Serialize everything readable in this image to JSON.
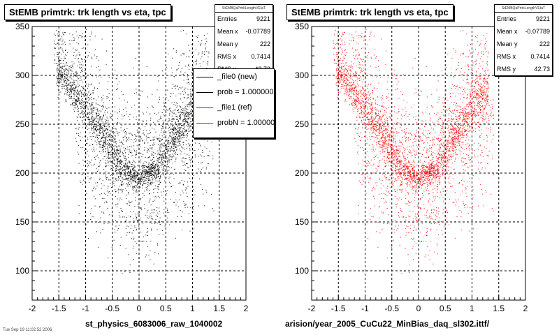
{
  "chart_data": [
    {
      "type": "scatter",
      "title": "StEMB primtrk: trk length vs eta, tpc",
      "xlabel": "st_physics_6083006_raw_1040002",
      "ylabel": "",
      "xlim": [
        -2,
        2
      ],
      "ylim": [
        70,
        350
      ],
      "xticks": [
        -2,
        -1.5,
        -1,
        -0.5,
        0,
        0.5,
        1,
        1.5,
        2
      ],
      "yticks": [
        100,
        150,
        200,
        250,
        300,
        350
      ],
      "grid": true,
      "marker_color": "#000000",
      "stats": {
        "header": "StEMBQaPrtrkLengthVEtaT",
        "rows": [
          {
            "label": "Entries",
            "value": "9221"
          },
          {
            "label": "Mean x",
            "value": "-0.07789"
          },
          {
            "label": "Mean y",
            "value": "222"
          },
          {
            "label": "RMS x",
            "value": "0.7414"
          },
          {
            "label": "RMS y",
            "value": "42.73"
          }
        ]
      },
      "legend": {
        "placement": "top-right",
        "entries": [
          {
            "label": "_file0 (new)",
            "color": "#000000"
          },
          {
            "label": "prob = 1.000000",
            "color": "#000000"
          },
          {
            "label": "_file1 (ref)",
            "color": "#ff0000"
          },
          {
            "label": "probN = 1.000000",
            "color": "#ff0000"
          }
        ]
      },
      "density_profile": {
        "eta": [
          -1.5,
          -1.2,
          -1.0,
          -0.7,
          -0.5,
          -0.3,
          0.0,
          0.3,
          0.5,
          0.7,
          1.0,
          1.3
        ],
        "center_length": [
          302,
          280,
          265,
          240,
          222,
          205,
          195,
          205,
          222,
          240,
          265,
          285
        ]
      }
    },
    {
      "type": "scatter",
      "title": "StEMB primtrk: trk length vs eta, tpc",
      "xlabel": "arision/year_2005_CuCu22_MinBias_daq_sl302.ittf/",
      "ylabel": "",
      "xlim": [
        -2,
        2
      ],
      "ylim": [
        70,
        350
      ],
      "xticks": [
        -2,
        -1.5,
        -1,
        -0.5,
        0,
        0.5,
        1,
        1.5,
        2
      ],
      "yticks": [
        100,
        150,
        200,
        250,
        300,
        350
      ],
      "grid": true,
      "marker_color": "#ff0000",
      "stats": {
        "header": "StEMBQaPrtrkLengthVEtaT",
        "rows": [
          {
            "label": "Entries",
            "value": "9221"
          },
          {
            "label": "Mean x",
            "value": "-0.07789"
          },
          {
            "label": "Mean y",
            "value": "222"
          },
          {
            "label": "RMS x",
            "value": "0.7414"
          },
          {
            "label": "RMS y",
            "value": "42.73"
          }
        ]
      }
    }
  ],
  "footer_text": "Tue Sep 19 11:02:52 2006"
}
